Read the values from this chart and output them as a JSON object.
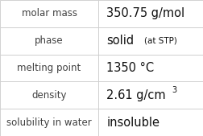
{
  "rows": [
    {
      "label": "molar mass",
      "value": "350.75 g/mol",
      "value_bold": false,
      "suffix": null,
      "superscript": null
    },
    {
      "label": "phase",
      "value": "solid",
      "value_bold": false,
      "suffix": "(at STP)",
      "superscript": null
    },
    {
      "label": "melting point",
      "value": "1350 °C",
      "value_bold": false,
      "suffix": null,
      "superscript": null
    },
    {
      "label": "density",
      "value": "2.61 g/cm",
      "value_bold": false,
      "suffix": null,
      "superscript": "3"
    },
    {
      "label": "solubility in water",
      "value": "insoluble",
      "value_bold": false,
      "suffix": null,
      "superscript": null
    }
  ],
  "col_split": 0.485,
  "background": "#f8f8f8",
  "cell_background": "#ffffff",
  "grid_color": "#cccccc",
  "label_color": "#404040",
  "value_color": "#111111",
  "label_fontsize": 8.5,
  "value_fontsize": 10.5,
  "suffix_fontsize": 7.5,
  "super_fontsize": 7.0
}
